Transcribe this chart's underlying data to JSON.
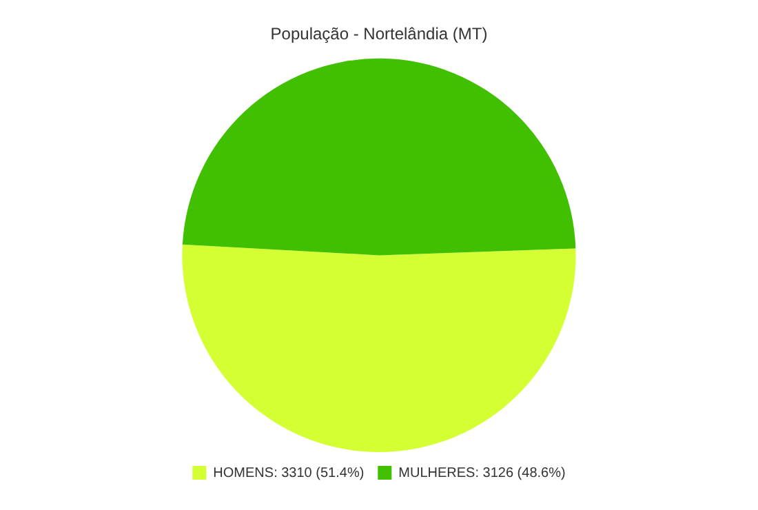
{
  "chart_data": {
    "type": "pie",
    "title": "População - Nortelândia (MT)",
    "categories": [
      "HOMENS: 3310 (51.4%)",
      "MULHERES: 3126 (48.6%)"
    ],
    "values": [
      3310,
      3126
    ],
    "colors": [
      "#d4ff33",
      "#40c000"
    ],
    "legend": "bottom"
  }
}
